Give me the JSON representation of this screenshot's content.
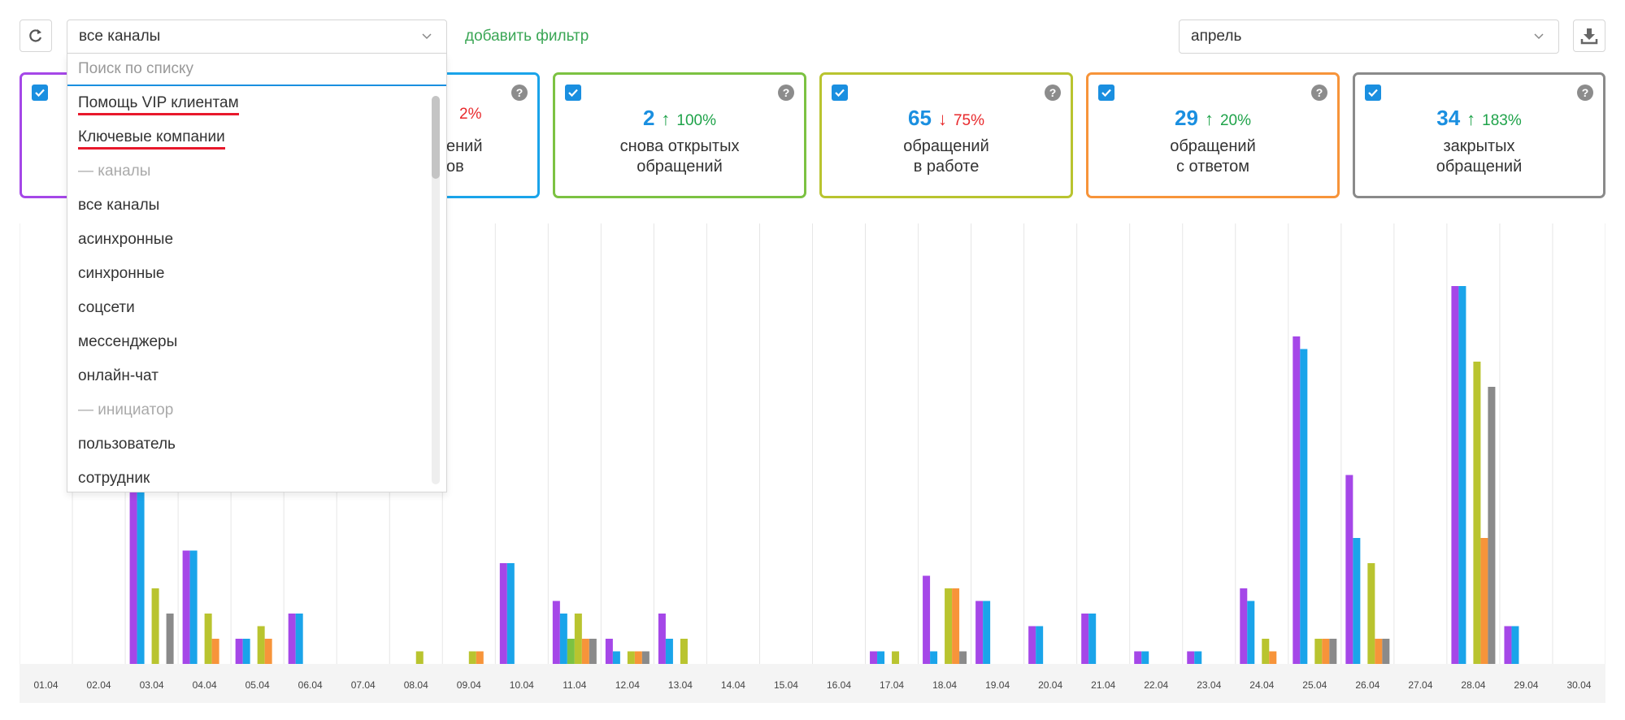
{
  "toolbar": {
    "channel_value": "все каналы",
    "add_filter_label": "добавить фильтр",
    "month_value": "апрель"
  },
  "dropdown": {
    "search_placeholder": "Поиск по списку",
    "items": [
      {
        "label": "Помощь VIP клиентам",
        "kind": "item",
        "underlined": true
      },
      {
        "label": "Ключевые компании",
        "kind": "item",
        "underlined": true
      },
      {
        "label": "— каналы",
        "kind": "group"
      },
      {
        "label": "все каналы",
        "kind": "item"
      },
      {
        "label": "асинхронные",
        "kind": "item"
      },
      {
        "label": "синхронные",
        "kind": "item"
      },
      {
        "label": "соцсети",
        "kind": "item"
      },
      {
        "label": "мессенджеры",
        "kind": "item"
      },
      {
        "label": "онлайн-чат",
        "kind": "item"
      },
      {
        "label": "— инициатор",
        "kind": "group"
      },
      {
        "label": "пользователь",
        "kind": "item"
      },
      {
        "label": "сотрудник",
        "kind": "item"
      }
    ]
  },
  "cards": [
    {
      "color": "#a547e8",
      "number": "",
      "arrow": "",
      "percent": "",
      "label_lines": [
        "",
        ""
      ]
    },
    {
      "color": "#1aa4ea",
      "number": "",
      "arrow": "",
      "percent": "2%",
      "trend": "down",
      "label_lines": [
        "ений",
        "ов"
      ]
    },
    {
      "color": "#7cc242",
      "number": "2",
      "arrow": "↑",
      "percent": "100%",
      "trend": "up",
      "label_lines": [
        "снова открытых",
        "обращений"
      ]
    },
    {
      "color": "#b9c42f",
      "number": "65",
      "arrow": "↓",
      "percent": "75%",
      "trend": "down",
      "label_lines": [
        "обращений",
        "в работе"
      ]
    },
    {
      "color": "#f7943a",
      "number": "29",
      "arrow": "↑",
      "percent": "20%",
      "trend": "up",
      "label_lines": [
        "обращений",
        "с ответом"
      ]
    },
    {
      "color": "#8a8a8a",
      "number": "34",
      "arrow": "↑",
      "percent": "183%",
      "trend": "up",
      "label_lines": [
        "закрытых",
        "обращений"
      ]
    }
  ],
  "chart_data": {
    "type": "bar",
    "ylim": [
      0,
      30
    ],
    "categories": [
      "01.04",
      "02.04",
      "03.04",
      "04.04",
      "05.04",
      "06.04",
      "07.04",
      "08.04",
      "09.04",
      "10.04",
      "11.04",
      "12.04",
      "13.04",
      "14.04",
      "15.04",
      "16.04",
      "17.04",
      "18.04",
      "19.04",
      "20.04",
      "21.04",
      "22.04",
      "23.04",
      "24.04",
      "25.04",
      "26.04",
      "27.04",
      "28.04",
      "29.04",
      "30.04"
    ],
    "series": [
      {
        "color": "#a547e8",
        "values": [
          0,
          0,
          16,
          9,
          2,
          4,
          0,
          0,
          0,
          8,
          5,
          2,
          4,
          0,
          0,
          0,
          1,
          7,
          5,
          3,
          4,
          1,
          1,
          6,
          26,
          15,
          0,
          30,
          3,
          0
        ]
      },
      {
        "color": "#1aa4ea",
        "values": [
          0,
          0,
          16,
          9,
          2,
          4,
          0,
          0,
          0,
          8,
          4,
          1,
          2,
          0,
          0,
          0,
          1,
          1,
          5,
          3,
          4,
          1,
          1,
          5,
          25,
          10,
          0,
          30,
          3,
          0
        ]
      },
      {
        "color": "#7cc242",
        "values": [
          0,
          0,
          0,
          0,
          0,
          0,
          0,
          0,
          0,
          0,
          2,
          0,
          0,
          0,
          0,
          0,
          0,
          0,
          0,
          0,
          0,
          0,
          0,
          0,
          0,
          0,
          0,
          0,
          0,
          0
        ]
      },
      {
        "color": "#b9c42f",
        "values": [
          0,
          0,
          6,
          4,
          3,
          0,
          0,
          1,
          1,
          0,
          4,
          1,
          2,
          0,
          0,
          0,
          1,
          6,
          0,
          0,
          0,
          0,
          0,
          2,
          2,
          8,
          0,
          24,
          0,
          0
        ]
      },
      {
        "color": "#f7943a",
        "values": [
          0,
          0,
          0,
          2,
          2,
          0,
          0,
          0,
          1,
          0,
          2,
          1,
          0,
          0,
          0,
          0,
          0,
          6,
          0,
          0,
          0,
          0,
          0,
          1,
          2,
          2,
          0,
          10,
          0,
          0
        ]
      },
      {
        "color": "#8a8a8a",
        "values": [
          0,
          0,
          4,
          0,
          0,
          0,
          0,
          0,
          0,
          0,
          2,
          1,
          0,
          0,
          0,
          0,
          0,
          1,
          0,
          0,
          0,
          0,
          0,
          0,
          2,
          2,
          0,
          22,
          0,
          0
        ]
      }
    ]
  }
}
